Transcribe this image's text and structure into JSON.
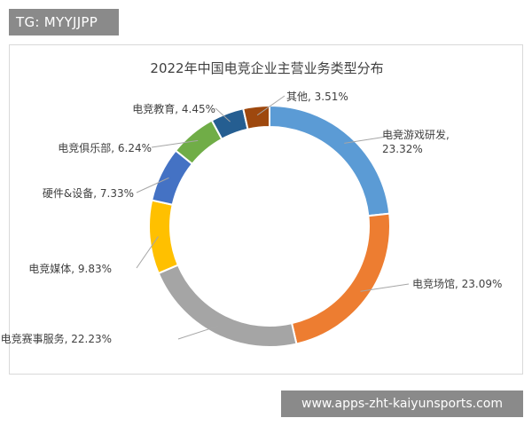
{
  "overlay": {
    "top_tag": "TG: MYYJJPP",
    "bottom_url": "www.apps-zht-kaiyunsports.com"
  },
  "chart_data": {
    "type": "pie",
    "variant": "donut",
    "title": "2022年中国电竞企业主营业务类型分布",
    "legend": "none",
    "slices": [
      {
        "label": "电竞游戏研发",
        "value": 23.32,
        "display": "电竞游戏研发, 23.32%",
        "color": "#5b9bd5"
      },
      {
        "label": "电竞场馆",
        "value": 23.09,
        "display": "电竞场馆, 23.09%",
        "color": "#ed7d31"
      },
      {
        "label": "电竞赛事服务",
        "value": 22.23,
        "display": "电竞赛事服务, 22.23%",
        "color": "#a5a5a5"
      },
      {
        "label": "电竞媒体",
        "value": 9.83,
        "display": "电竞媒体, 9.83%",
        "color": "#ffc000"
      },
      {
        "label": "硬件&设备",
        "value": 7.33,
        "display": "硬件&设备, 7.33%",
        "color": "#4472c4"
      },
      {
        "label": "电竞俱乐部",
        "value": 6.24,
        "display": "电竞俱乐部, 6.24%",
        "color": "#70ad47"
      },
      {
        "label": "电竞教育",
        "value": 4.45,
        "display": "电竞教育, 4.45%",
        "color": "#255e91"
      },
      {
        "label": "其他",
        "value": 3.51,
        "display": "其他, 3.51%",
        "color": "#9e480e"
      }
    ]
  }
}
